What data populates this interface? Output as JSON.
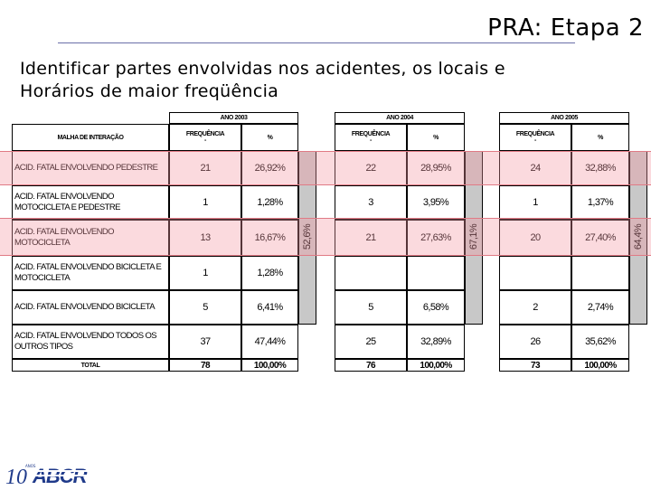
{
  "slide": {
    "title": "PRA: Etapa 2",
    "subtitle_line1": "Identificar partes envolvidas nos acidentes, os locais e",
    "subtitle_line2": "Horários de maior freqüência"
  },
  "table": {
    "row_header": "MALHA DE INTERAÇÃO",
    "years": [
      {
        "label": "ANO 2003",
        "freq_label": "FREQUÊNCIA",
        "pct_label": "%",
        "side_pct": "52,6%"
      },
      {
        "label": "ANO 2004",
        "freq_label": "FREQUÊNCIA",
        "pct_label": "%",
        "side_pct": "67,1%"
      },
      {
        "label": "ANO 2005",
        "freq_label": "FREQUÊNCIA",
        "pct_label": "%",
        "side_pct": "64,4%"
      }
    ],
    "rows": [
      {
        "label": "ACID. FATAL ENVOLVENDO PEDESTRE",
        "v": [
          "21",
          "26,92%",
          "22",
          "28,95%",
          "24",
          "32,88%"
        ]
      },
      {
        "label": "ACID. FATAL ENVOLVENDO MOTOCICLETA E PEDESTRE",
        "v": [
          "1",
          "1,28%",
          "3",
          "3,95%",
          "1",
          "1,37%"
        ]
      },
      {
        "label": "ACID. FATAL ENVOLVENDO MOTOCICLETA",
        "v": [
          "13",
          "16,67%",
          "21",
          "27,63%",
          "20",
          "27,40%"
        ]
      },
      {
        "label": "ACID. FATAL ENVOLVENDO BICICLETA E MOTOCICLETA",
        "v": [
          "1",
          "1,28%",
          "",
          "",
          "",
          ""
        ]
      },
      {
        "label": "ACID. FATAL ENVOLVENDO BICICLETA",
        "v": [
          "5",
          "6,41%",
          "5",
          "6,58%",
          "2",
          "2,74%"
        ]
      },
      {
        "label": "ACID. FATAL ENVOLVENDO TODOS OS OUTROS TIPOS",
        "v": [
          "37",
          "47,44%",
          "25",
          "32,89%",
          "26",
          "35,62%"
        ]
      }
    ],
    "total": {
      "label": "TOTAL",
      "v": [
        "78",
        "100,00%",
        "76",
        "100,00%",
        "73",
        "100,00%"
      ]
    }
  },
  "logo": {
    "text": "ABCR",
    "small": "10",
    "tiny": "ANOS"
  },
  "colors": {
    "highlight": "#f4969f",
    "gray_bar": "#c8c8c8",
    "rule": "#6a6fa8",
    "logo_blue": "#1f3a8a"
  }
}
